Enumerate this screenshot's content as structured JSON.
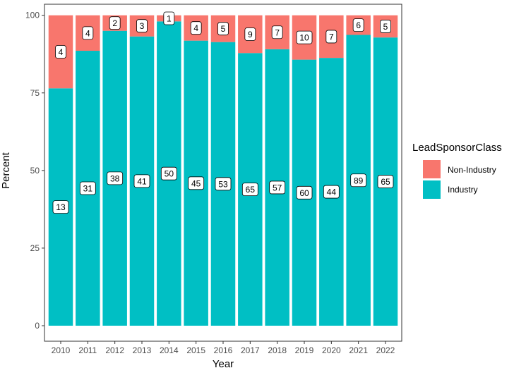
{
  "chart_data": {
    "type": "bar",
    "stacked": true,
    "xlabel": "Year",
    "ylabel": "Percent",
    "ylim": [
      0,
      100
    ],
    "yticks": [
      "0",
      "25",
      "50",
      "75",
      "100"
    ],
    "categories": [
      "2010",
      "2011",
      "2012",
      "2013",
      "2014",
      "2015",
      "2016",
      "2017",
      "2018",
      "2019",
      "2020",
      "2021",
      "2022"
    ],
    "series": [
      {
        "name": "Industry",
        "color": "#00BFC4",
        "counts": [
          13,
          31,
          38,
          41,
          50,
          45,
          53,
          65,
          57,
          60,
          44,
          89,
          65
        ]
      },
      {
        "name": "Non-Industry",
        "color": "#F8766D",
        "counts": [
          4,
          4,
          2,
          3,
          1,
          4,
          5,
          9,
          7,
          10,
          7,
          6,
          5
        ]
      }
    ],
    "legend": {
      "title": "LeadSponsorClass",
      "position": "right",
      "entries": [
        {
          "label": "Non-Industry",
          "color": "#F8766D"
        },
        {
          "label": "Industry",
          "color": "#00BFC4"
        }
      ]
    },
    "grid": false
  }
}
